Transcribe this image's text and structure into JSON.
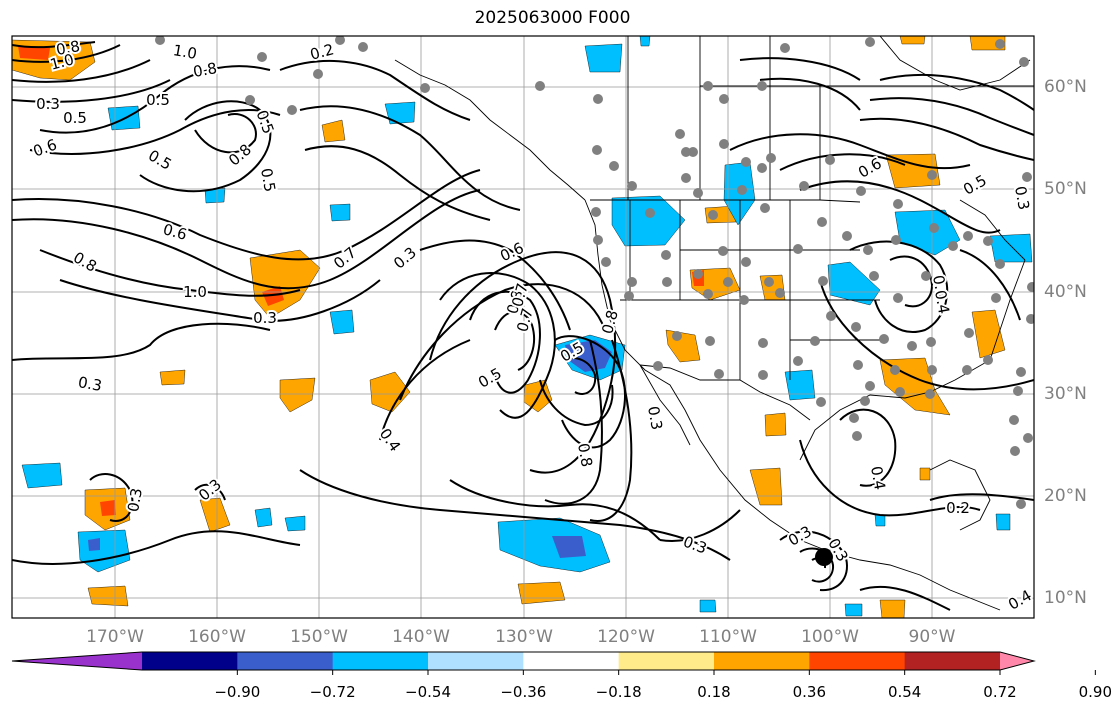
{
  "title": "2025063000 F000",
  "map": {
    "longitude_labels": [
      "170°W",
      "160°W",
      "150°W",
      "140°W",
      "130°W",
      "120°W",
      "110°W",
      "100°W",
      "90°W"
    ],
    "latitude_labels": [
      "60°N",
      "50°N",
      "40°N",
      "30°N",
      "20°N",
      "10°N"
    ],
    "contour_labels": [
      "0.8",
      "1.0",
      "0.8",
      "0.2",
      "0.5",
      "0.3",
      "0.5",
      "0.6",
      "0.5",
      "0.5",
      "0.8",
      "0.5",
      "1.0",
      "0.6",
      "0.8",
      "1.0",
      "0.7",
      "0.3",
      "0.3",
      "0.6",
      "0.8",
      "0.7",
      "0.5",
      "0.3",
      "0.4",
      "0.8",
      "0.3",
      "0.3",
      "0.3",
      "0.5",
      "0.7",
      "0.8",
      "0.6",
      "0.4",
      "0.4",
      "0.5",
      "0.4",
      "0.3",
      "0.3",
      "0.3",
      "0.2",
      "0.4",
      "0.3"
    ],
    "station_marker": "gray-dot",
    "storm_marker": "black-dot"
  },
  "colorbar": {
    "tick_labels": [
      "−0.90",
      "−0.72",
      "−0.54",
      "−0.36",
      "−0.18",
      "0.18",
      "0.36",
      "0.54",
      "0.72",
      "0.90"
    ],
    "colors": [
      "#9932CC",
      "#00008B",
      "#3A5FCD",
      "#00BFFF",
      "#AFE0FF",
      "#FFFFFF",
      "#FFEB8A",
      "#FFA500",
      "#FF4500",
      "#B22222",
      "#FF88AA"
    ]
  }
}
